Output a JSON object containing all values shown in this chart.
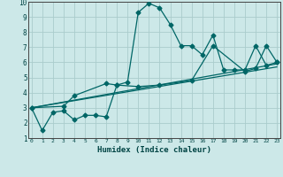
{
  "title": "",
  "xlabel": "Humidex (Indice chaleur)",
  "bg_color": "#cce8e8",
  "grid_color": "#aacccc",
  "line_color": "#006666",
  "xlim": [
    0,
    23
  ],
  "ylim": [
    1,
    10
  ],
  "xticks": [
    0,
    1,
    2,
    3,
    4,
    5,
    6,
    7,
    8,
    9,
    10,
    11,
    12,
    13,
    14,
    15,
    16,
    17,
    18,
    19,
    20,
    21,
    22,
    23
  ],
  "yticks": [
    1,
    2,
    3,
    4,
    5,
    6,
    7,
    8,
    9,
    10
  ],
  "line1_x": [
    0,
    1,
    2,
    3,
    4,
    5,
    6,
    7,
    8,
    9,
    10,
    11,
    12,
    13,
    14,
    15,
    16,
    17,
    18,
    19,
    20,
    21,
    22,
    23
  ],
  "line1_y": [
    3.0,
    1.5,
    2.7,
    2.8,
    2.2,
    2.5,
    2.5,
    2.4,
    4.5,
    4.7,
    9.3,
    9.9,
    9.6,
    8.5,
    7.1,
    7.1,
    6.5,
    7.8,
    5.5,
    5.5,
    5.5,
    7.1,
    5.8,
    6.0
  ],
  "line2_x": [
    0,
    3,
    4,
    7,
    8,
    10,
    12,
    15,
    17,
    20,
    21,
    22,
    23
  ],
  "line2_y": [
    3.0,
    3.1,
    3.8,
    4.6,
    4.5,
    4.4,
    4.5,
    4.8,
    7.1,
    5.4,
    5.6,
    7.1,
    6.0
  ],
  "line3_x": [
    0,
    23
  ],
  "line3_y": [
    3.0,
    5.9
  ],
  "line4_x": [
    0,
    23
  ],
  "line4_y": [
    3.0,
    5.7
  ]
}
